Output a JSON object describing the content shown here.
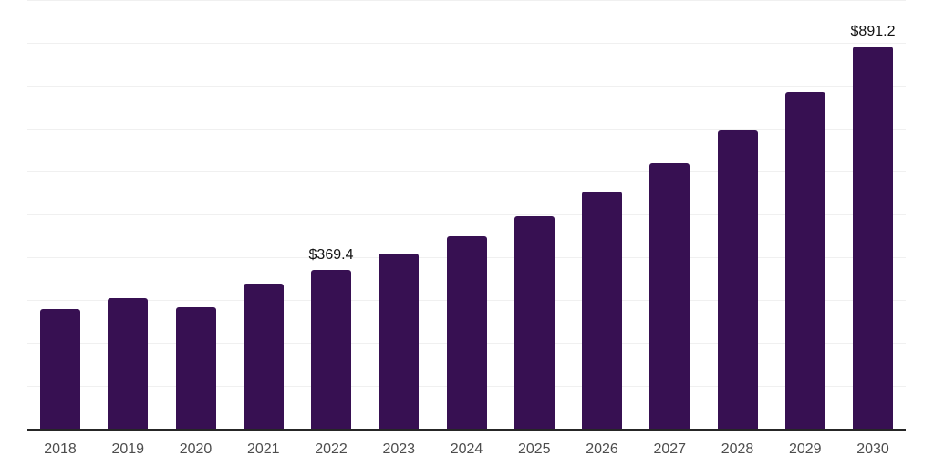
{
  "colors": {
    "bar": "#371052",
    "axis_line": "#262626",
    "gridline": "#f0f0f0",
    "tick_label": "#4d4d4d",
    "value_label": "#111111",
    "background": "#ffffff"
  },
  "chart_data": {
    "type": "bar",
    "title": "",
    "xlabel": "",
    "ylabel": "",
    "categories": [
      "2018",
      "2019",
      "2020",
      "2021",
      "2022",
      "2023",
      "2024",
      "2025",
      "2026",
      "2027",
      "2028",
      "2029",
      "2030"
    ],
    "values": [
      279,
      304,
      282,
      339,
      369.4,
      408,
      450,
      496,
      554,
      620,
      696,
      785,
      891.2
    ],
    "point_labels": [
      null,
      null,
      null,
      null,
      "$369.4",
      null,
      null,
      null,
      null,
      null,
      null,
      null,
      "$891.2"
    ],
    "ylim": [
      0,
      1000
    ],
    "gridline_interval": 100,
    "grid": "horizontal-only",
    "legend": "none",
    "y_axis_tick_labels_visible": false,
    "bar_color": "#371052",
    "currency_prefix": "$"
  }
}
